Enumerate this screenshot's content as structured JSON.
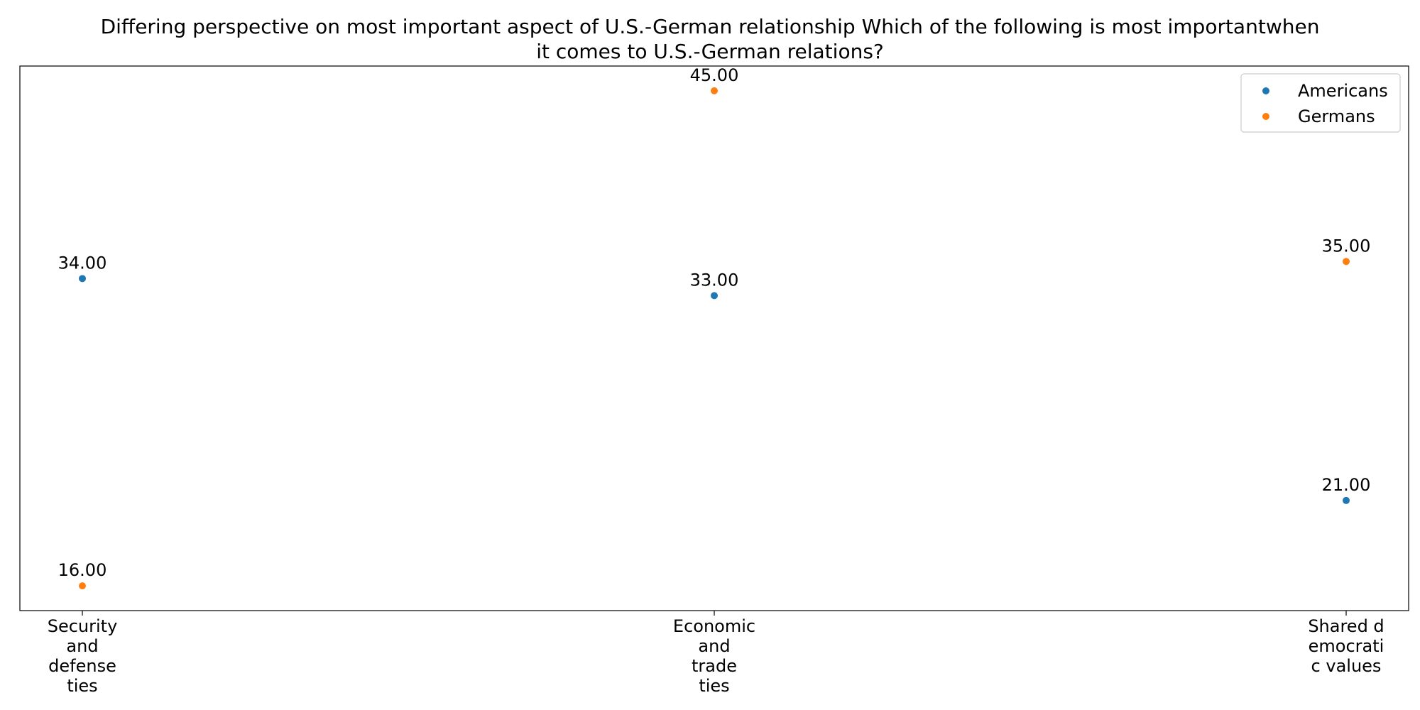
{
  "chart_data": {
    "type": "scatter",
    "title_lines": [
      "Differing perspective on most important aspect of U.S.-German relationship Which of the following is most importantwhen",
      "it comes to U.S.-German relations?"
    ],
    "xlabel": "",
    "ylabel": "",
    "categories": [
      {
        "lines": [
          "Security",
          "and",
          "defense",
          "ties"
        ]
      },
      {
        "lines": [
          "Economic",
          "and",
          "trade",
          "ties"
        ]
      },
      {
        "lines": [
          "Shared d",
          "emocrati",
          "c values"
        ]
      }
    ],
    "series": [
      {
        "name": "Americans",
        "color": "#1f77b4",
        "values": [
          34,
          33,
          21
        ],
        "labels": [
          "34.00",
          "33.00",
          "21.00"
        ]
      },
      {
        "name": "Germans",
        "color": "#ff7f0e",
        "values": [
          16,
          45,
          35
        ],
        "labels": [
          "16.00",
          "45.00",
          "35.00"
        ]
      }
    ],
    "ylim": [
      14.55,
      46.45
    ],
    "legend_position": "top-right",
    "grid": false,
    "y_ticks_shown": false
  }
}
